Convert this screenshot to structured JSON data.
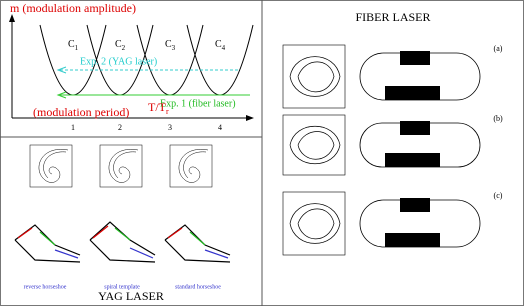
{
  "yag_panel": {
    "y_axis_label": "m (modulation amplitude)",
    "curves": [
      {
        "base": "C",
        "sub": "1"
      },
      {
        "base": "C",
        "sub": "2"
      },
      {
        "base": "C",
        "sub": "3"
      },
      {
        "base": "C",
        "sub": "4"
      }
    ],
    "exp2": "Exp. 2 (YAG laser)",
    "exp1": "Exp. 1 (fiber laser)",
    "x_axis_label": "(modulation period)",
    "x_axis_ratio": {
      "base": "T/T",
      "sub": "r"
    },
    "ticks": [
      "1",
      "2",
      "3",
      "4"
    ],
    "templates": [
      "reverse horseshoe",
      "spiral template",
      "standard horseshoe"
    ],
    "title": "YAG LASER"
  },
  "fiber_panel": {
    "title": "FIBER LASER",
    "rows": [
      "(a)",
      "(b)",
      "(c)"
    ]
  }
}
